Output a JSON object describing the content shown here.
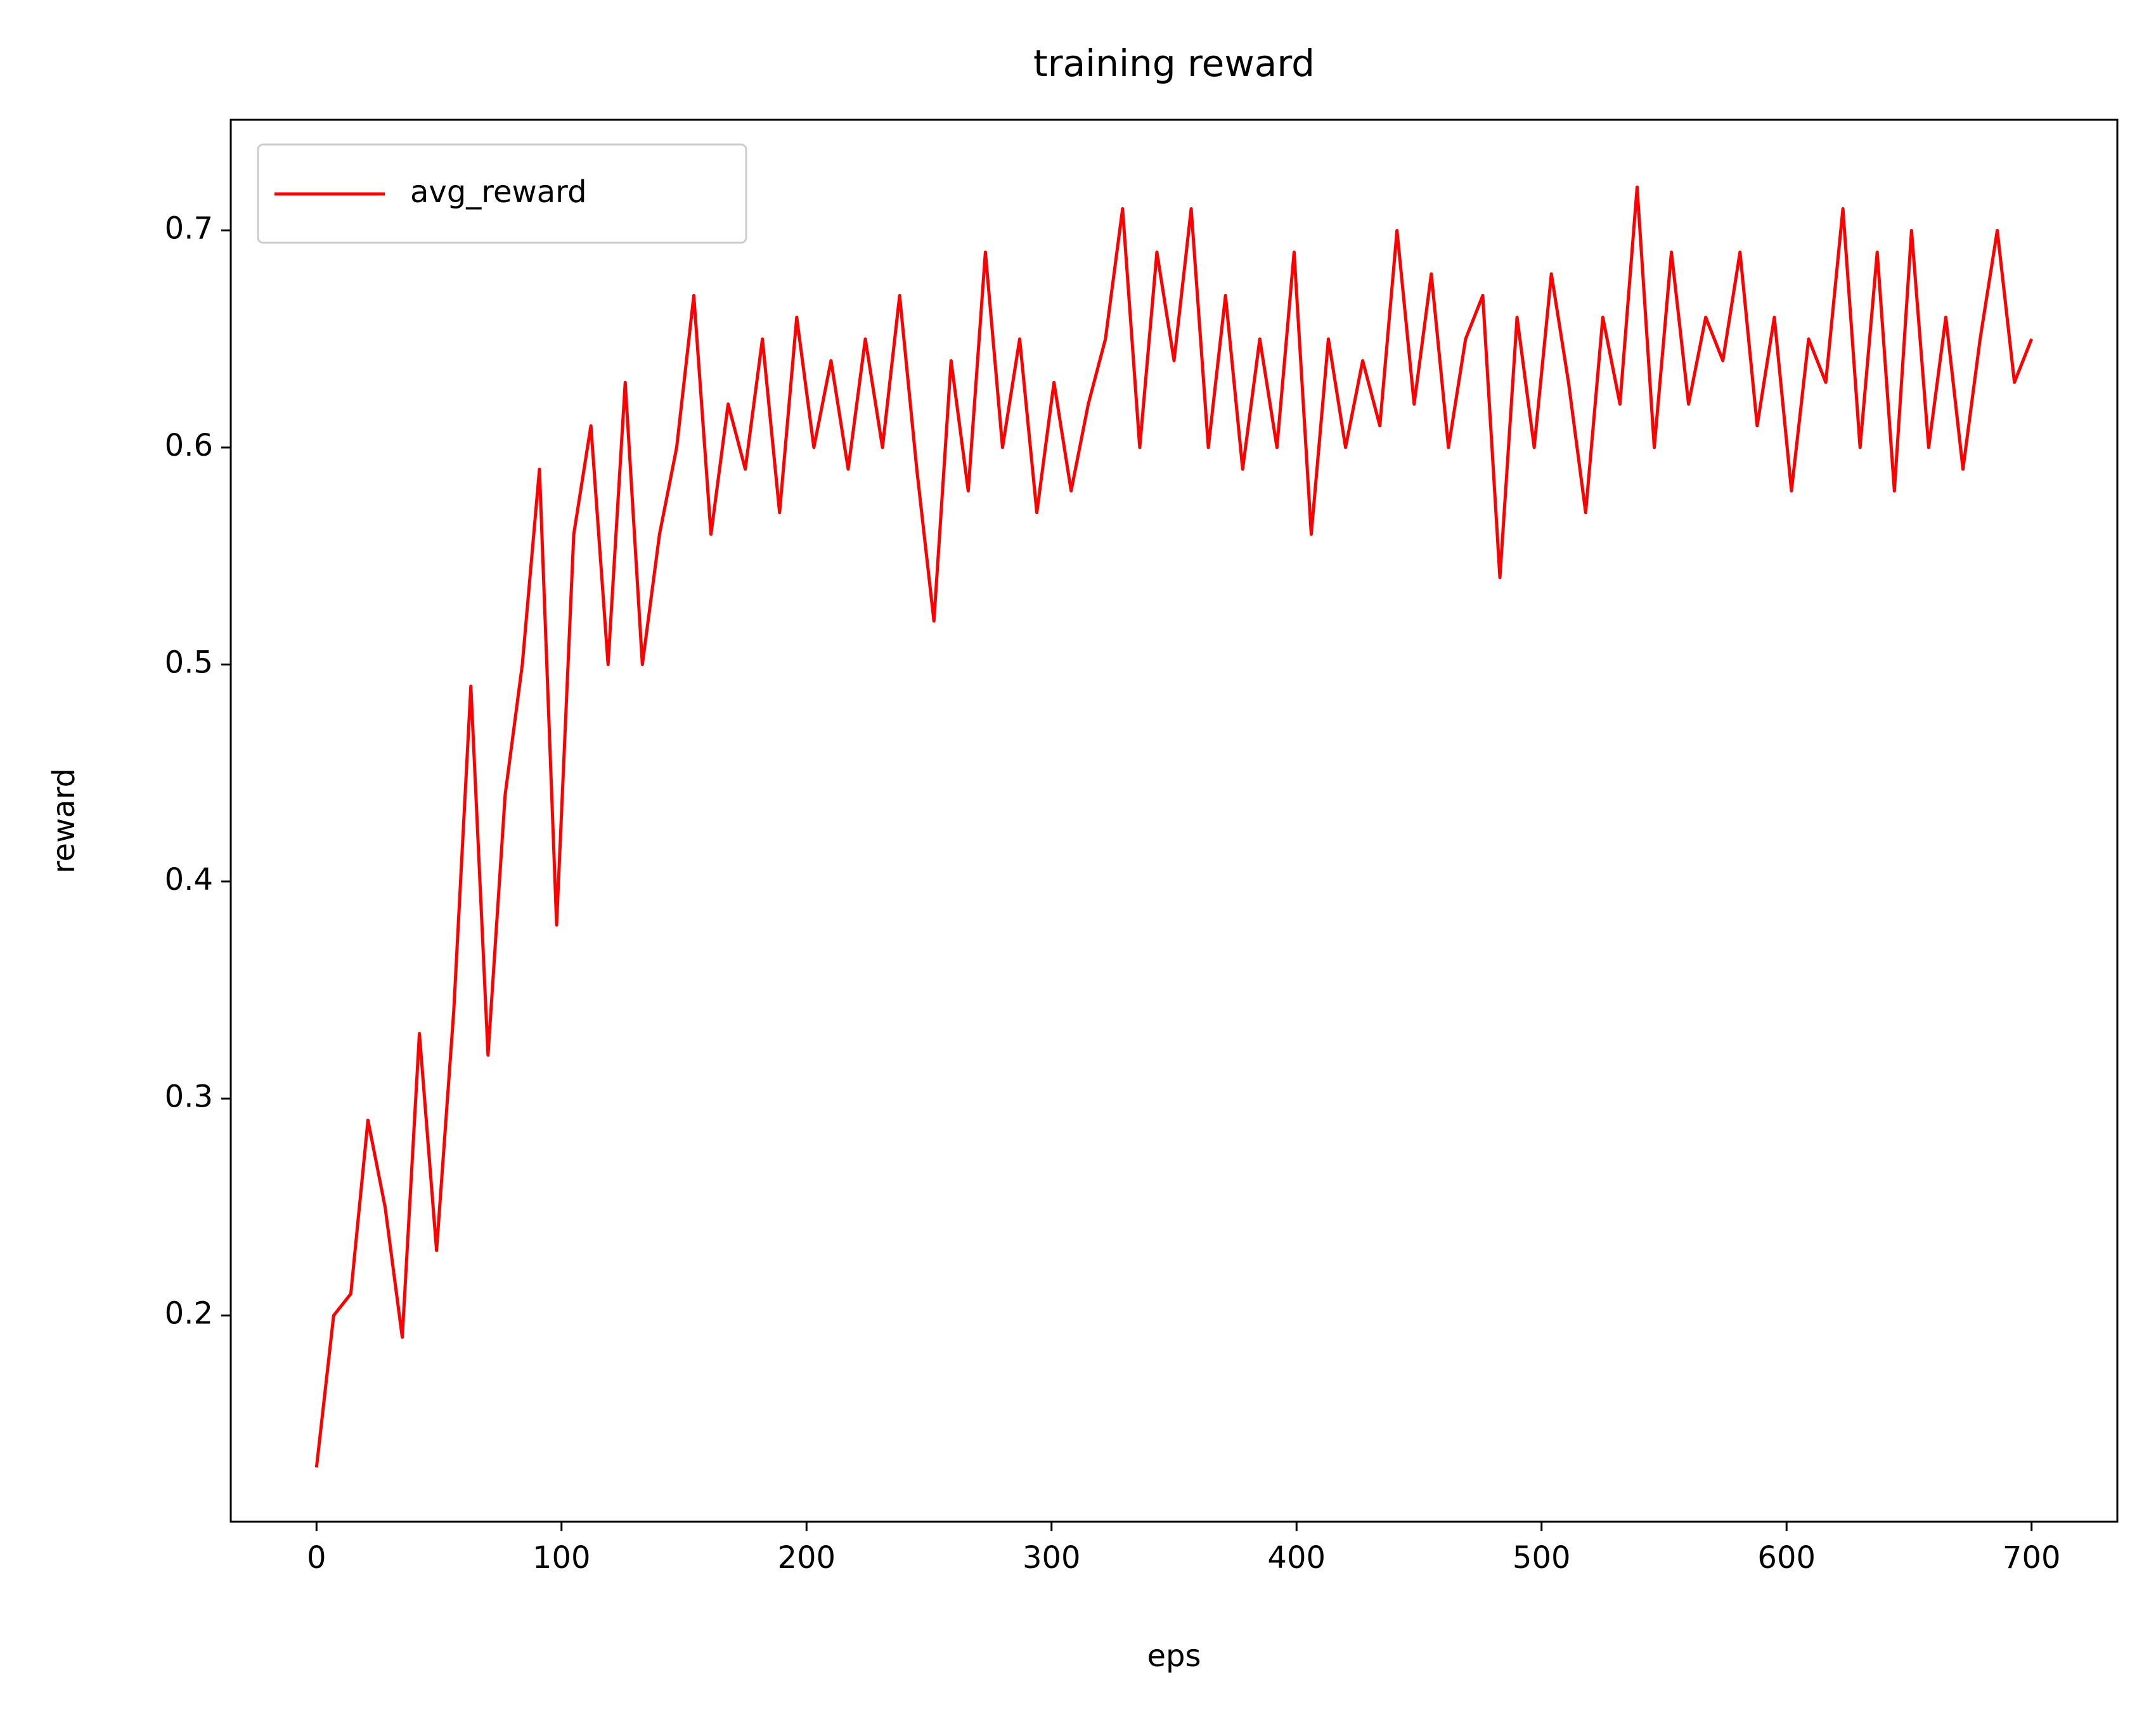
{
  "chart_data": {
    "type": "line",
    "title": "training reward",
    "x_label": "eps",
    "y_label": "reward",
    "x": [
      0,
      7,
      14,
      21,
      28,
      35,
      42,
      49,
      56,
      63,
      70,
      77,
      84,
      91,
      98,
      105,
      112,
      119,
      126,
      133,
      140,
      147,
      154,
      161,
      168,
      175,
      182,
      189,
      196,
      203,
      210,
      217,
      224,
      231,
      238,
      245,
      252,
      259,
      266,
      273,
      280,
      287,
      294,
      301,
      308,
      315,
      322,
      329,
      336,
      343,
      350,
      357,
      364,
      371,
      378,
      385,
      392,
      399,
      406,
      413,
      420,
      427,
      434,
      441,
      448,
      455,
      462,
      469,
      476,
      483,
      490,
      497,
      504,
      511,
      518,
      525,
      532,
      539,
      546,
      553,
      560,
      567,
      574,
      581,
      588,
      595,
      602,
      609,
      616,
      623,
      630,
      637,
      644,
      651,
      658,
      665,
      672,
      679,
      686,
      693,
      700
    ],
    "series": [
      {
        "name": "avg_reward",
        "color": "#ff0000",
        "values": [
          0.13,
          0.2,
          0.21,
          0.29,
          0.25,
          0.19,
          0.33,
          0.23,
          0.34,
          0.49,
          0.32,
          0.44,
          0.5,
          0.59,
          0.38,
          0.56,
          0.61,
          0.5,
          0.63,
          0.5,
          0.56,
          0.6,
          0.67,
          0.56,
          0.62,
          0.59,
          0.65,
          0.57,
          0.66,
          0.6,
          0.64,
          0.59,
          0.65,
          0.6,
          0.67,
          0.59,
          0.52,
          0.64,
          0.58,
          0.69,
          0.6,
          0.65,
          0.57,
          0.63,
          0.58,
          0.62,
          0.65,
          0.71,
          0.6,
          0.69,
          0.64,
          0.71,
          0.6,
          0.67,
          0.59,
          0.65,
          0.6,
          0.69,
          0.56,
          0.65,
          0.6,
          0.64,
          0.61,
          0.7,
          0.62,
          0.68,
          0.6,
          0.65,
          0.67,
          0.54,
          0.66,
          0.6,
          0.68,
          0.63,
          0.57,
          0.66,
          0.62,
          0.72,
          0.6,
          0.69,
          0.62,
          0.66,
          0.64,
          0.69,
          0.61,
          0.66,
          0.58,
          0.65,
          0.63,
          0.71,
          0.6,
          0.69,
          0.58,
          0.7,
          0.6,
          0.66,
          0.59,
          0.65,
          0.7,
          0.63,
          0.65
        ]
      }
    ],
    "xlim": [
      -35,
      735
    ],
    "ylim": [
      0.105,
      0.751
    ],
    "xticks": [
      0,
      100,
      200,
      300,
      400,
      500,
      600,
      700
    ],
    "yticks": [
      0.2,
      0.3,
      0.4,
      0.5,
      0.6,
      0.7
    ],
    "legend": "upper left"
  }
}
